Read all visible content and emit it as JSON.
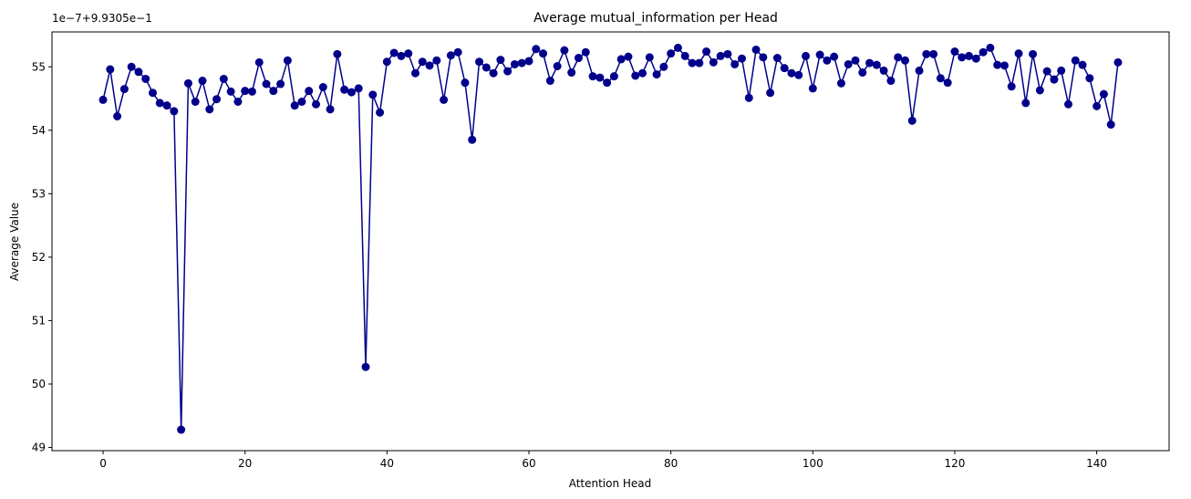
{
  "chart_data": {
    "type": "line",
    "title": "Average mutual_information per Head",
    "xlabel": "Attention Head",
    "ylabel": "Average Value",
    "y_offset_text": "1e−7+9.9305e−1",
    "xlim": [
      -7.2,
      150.2
    ],
    "ylim": [
      48.95,
      55.55
    ],
    "x_ticks": [
      0,
      20,
      40,
      60,
      80,
      100,
      120,
      140
    ],
    "y_ticks": [
      49,
      50,
      51,
      52,
      53,
      54,
      55
    ],
    "grid": false,
    "series": [
      {
        "color": "#00008b",
        "marker": "circle",
        "x": [
          0,
          1,
          2,
          3,
          4,
          5,
          6,
          7,
          8,
          9,
          10,
          11,
          12,
          13,
          14,
          15,
          16,
          17,
          18,
          19,
          20,
          21,
          22,
          23,
          24,
          25,
          26,
          27,
          28,
          29,
          30,
          31,
          32,
          33,
          34,
          35,
          36,
          37,
          38,
          39,
          40,
          41,
          42,
          43,
          44,
          45,
          46,
          47,
          48,
          49,
          50,
          51,
          52,
          53,
          54,
          55,
          56,
          57,
          58,
          59,
          60,
          61,
          62,
          63,
          64,
          65,
          66,
          67,
          68,
          69,
          70,
          71,
          72,
          73,
          74,
          75,
          76,
          77,
          78,
          79,
          80,
          81,
          82,
          83,
          84,
          85,
          86,
          87,
          88,
          89,
          90,
          91,
          92,
          93,
          94,
          95,
          96,
          97,
          98,
          99,
          100,
          101,
          102,
          103,
          104,
          105,
          106,
          107,
          108,
          109,
          110,
          111,
          112,
          113,
          114,
          115,
          116,
          117,
          118,
          119,
          120,
          121,
          122,
          123,
          124,
          125,
          126,
          127,
          128,
          129,
          130,
          131,
          132,
          133,
          134,
          135,
          136,
          137,
          138,
          139,
          140,
          141,
          142,
          143
        ],
        "values": [
          54.48,
          54.96,
          54.22,
          54.65,
          55.0,
          54.92,
          54.81,
          54.59,
          54.43,
          54.39,
          54.3,
          49.28,
          54.74,
          54.45,
          54.78,
          54.33,
          54.49,
          54.81,
          54.61,
          54.45,
          54.62,
          54.61,
          55.07,
          54.73,
          54.62,
          54.73,
          55.1,
          54.39,
          54.45,
          54.62,
          54.41,
          54.68,
          54.33,
          55.2,
          54.64,
          54.6,
          54.66,
          50.27,
          54.56,
          54.28,
          55.08,
          55.22,
          55.17,
          55.21,
          54.9,
          55.08,
          55.02,
          55.1,
          54.48,
          55.18,
          55.23,
          54.75,
          53.85,
          55.08,
          54.99,
          54.9,
          55.11,
          54.93,
          55.04,
          55.06,
          55.09,
          55.28,
          55.21,
          54.78,
          55.01,
          55.26,
          54.91,
          55.14,
          55.23,
          54.85,
          54.83,
          54.75,
          54.85,
          55.12,
          55.16,
          54.86,
          54.9,
          55.15,
          54.88,
          55.0,
          55.21,
          55.3,
          55.17,
          55.06,
          55.06,
          55.24,
          55.07,
          55.17,
          55.2,
          55.04,
          55.13,
          54.51,
          55.27,
          55.15,
          54.59,
          55.14,
          54.98,
          54.9,
          54.87,
          55.17,
          54.66,
          55.19,
          55.1,
          55.16,
          54.74,
          55.04,
          55.1,
          54.91,
          55.06,
          55.03,
          54.94,
          54.78,
          55.15,
          55.1,
          54.15,
          54.94,
          55.2,
          55.2,
          54.82,
          54.75,
          55.24,
          55.15,
          55.17,
          55.13,
          55.23,
          55.3,
          55.03,
          55.02,
          54.69,
          55.21,
          54.43,
          55.2,
          54.63,
          54.93,
          54.8,
          54.94,
          54.41,
          55.1,
          55.03,
          54.82,
          54.38,
          54.57,
          54.09,
          55.07
        ]
      }
    ]
  }
}
